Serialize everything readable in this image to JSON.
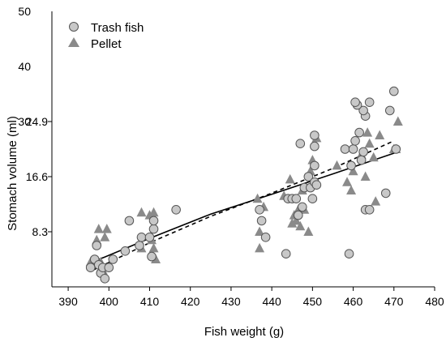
{
  "chart_data": {
    "type": "scatter",
    "xlabel": "Fish weight (g)",
    "ylabel": "Stomach volume (ml)",
    "xlim": [
      386,
      480
    ],
    "xticks": [
      "390",
      "400",
      "410",
      "420",
      "430",
      "440",
      "450",
      "460",
      "470",
      "480"
    ],
    "ylim": [
      0,
      50
    ],
    "yticks_outer": [
      "50",
      "40",
      "30"
    ],
    "yticks_inner": [
      "24.9",
      "16.6",
      "8.3"
    ],
    "legend": {
      "position": "top-left"
    },
    "colors": {
      "trash_fish": "#c8c8c8",
      "pellet": "#8a8a8a",
      "edge": "#555555"
    },
    "series": [
      {
        "name": "Trash fish",
        "marker": "circle",
        "points": [
          [
            395.5,
            3.5
          ],
          [
            396.5,
            5.0
          ],
          [
            397.0,
            7.5
          ],
          [
            397.5,
            4.0
          ],
          [
            398.0,
            2.5
          ],
          [
            398.5,
            3.5
          ],
          [
            399.0,
            1.5
          ],
          [
            400.0,
            3.5
          ],
          [
            401.0,
            5.0
          ],
          [
            404.0,
            6.5
          ],
          [
            405.0,
            12.0
          ],
          [
            407.5,
            7.5
          ],
          [
            408.0,
            9.0
          ],
          [
            410.0,
            9.0
          ],
          [
            410.5,
            5.5
          ],
          [
            411.0,
            10.5
          ],
          [
            411.0,
            12.0
          ],
          [
            416.5,
            14.0
          ],
          [
            437.0,
            14.0
          ],
          [
            437.5,
            12.0
          ],
          [
            438.5,
            9.0
          ],
          [
            443.5,
            6.0
          ],
          [
            444.0,
            16.0
          ],
          [
            445.0,
            16.0
          ],
          [
            446.0,
            16.0
          ],
          [
            446.5,
            13.0
          ],
          [
            447.5,
            14.5
          ],
          [
            448.0,
            18.0
          ],
          [
            449.0,
            20.0
          ],
          [
            449.5,
            18.0
          ],
          [
            450.0,
            16.0
          ],
          [
            450.5,
            19.0
          ],
          [
            450.5,
            22.0
          ],
          [
            451.0,
            18.5
          ],
          [
            447.0,
            26.0
          ],
          [
            450.5,
            25.5
          ],
          [
            450.5,
            27.5
          ],
          [
            458.0,
            25.0
          ],
          [
            459.5,
            22.0
          ],
          [
            460.0,
            25.0
          ],
          [
            460.5,
            26.5
          ],
          [
            461.5,
            28.0
          ],
          [
            462.0,
            23.0
          ],
          [
            462.5,
            24.5
          ],
          [
            463.0,
            14.0
          ],
          [
            464.0,
            14.0
          ],
          [
            463.0,
            31.0
          ],
          [
            462.5,
            32.0
          ],
          [
            464.0,
            33.5
          ],
          [
            461.0,
            33.0
          ],
          [
            460.5,
            33.5
          ],
          [
            468.0,
            17.0
          ],
          [
            469.0,
            32.0
          ],
          [
            470.0,
            35.5
          ],
          [
            470.5,
            25.0
          ],
          [
            459.0,
            6.0
          ]
        ]
      },
      {
        "name": "Pellet",
        "marker": "triangle",
        "points": [
          [
            395.5,
            4.5
          ],
          [
            397.0,
            8.5
          ],
          [
            397.5,
            10.5
          ],
          [
            398.0,
            4.5
          ],
          [
            398.5,
            3.0
          ],
          [
            399.0,
            9.0
          ],
          [
            399.5,
            10.5
          ],
          [
            408.0,
            7.0
          ],
          [
            408.0,
            13.5
          ],
          [
            410.0,
            13.0
          ],
          [
            410.5,
            8.5
          ],
          [
            411.0,
            13.5
          ],
          [
            411.0,
            7.0
          ],
          [
            411.5,
            5.0
          ],
          [
            436.5,
            16.0
          ],
          [
            437.0,
            10.0
          ],
          [
            437.0,
            7.0
          ],
          [
            438.0,
            14.5
          ],
          [
            443.0,
            16.5
          ],
          [
            444.5,
            19.5
          ],
          [
            445.0,
            11.5
          ],
          [
            445.5,
            13.0
          ],
          [
            446.0,
            12.0
          ],
          [
            446.5,
            14.0
          ],
          [
            447.0,
            11.0
          ],
          [
            447.5,
            17.5
          ],
          [
            448.0,
            14.0
          ],
          [
            449.0,
            10.0
          ],
          [
            449.5,
            21.0
          ],
          [
            450.0,
            23.0
          ],
          [
            451.0,
            27.0
          ],
          [
            456.0,
            22.0
          ],
          [
            458.5,
            19.0
          ],
          [
            459.5,
            17.5
          ],
          [
            462.0,
            24.0
          ],
          [
            463.0,
            20.0
          ],
          [
            463.5,
            28.0
          ],
          [
            465.0,
            23.5
          ],
          [
            465.5,
            15.5
          ],
          [
            466.5,
            27.5
          ],
          [
            470.0,
            25.0
          ],
          [
            470.5,
            25.0
          ],
          [
            471.0,
            30.0
          ],
          [
            464.0,
            26.0
          ],
          [
            460.0,
            21.0
          ]
        ]
      }
    ],
    "fits": [
      {
        "style": "solid",
        "points": [
          [
            396,
            4.5
          ],
          [
            410,
            8.8
          ],
          [
            425,
            13.2
          ],
          [
            440,
            16.8
          ],
          [
            455,
            20.5
          ],
          [
            471,
            24.5
          ]
        ]
      },
      {
        "style": "dashed",
        "points": [
          [
            396,
            3.0
          ],
          [
            410,
            8.0
          ],
          [
            425,
            12.8
          ],
          [
            440,
            17.0
          ],
          [
            455,
            21.5
          ],
          [
            470,
            26.5
          ]
        ]
      }
    ]
  }
}
